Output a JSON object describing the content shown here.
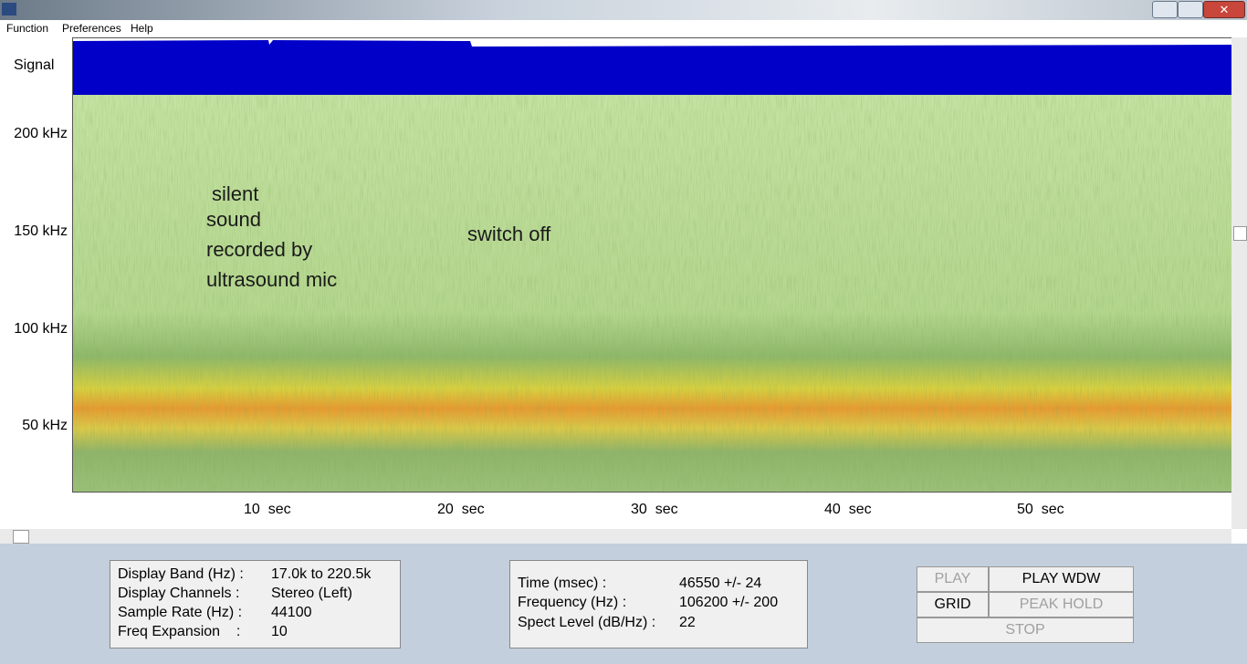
{
  "menu": [
    "Function",
    "Preferences",
    "Help"
  ],
  "signal_label": "Signal",
  "frequency_labels": [
    "200 kHz",
    "150 kHz",
    "100 kHz",
    "50 kHz"
  ],
  "time_labels": [
    "10  sec",
    "20  sec",
    "30  sec",
    "40  sec",
    "50  sec"
  ],
  "annotations": {
    "left": [
      "silent",
      "sound",
      "recorded by",
      "ultrasound mic"
    ],
    "right": "switch off"
  },
  "display_info": {
    "rows": [
      [
        "Display Band (Hz) :",
        "17.0k to 220.5k"
      ],
      [
        "Display Channels :",
        "Stereo (Left)"
      ],
      [
        "Sample Rate (Hz) :",
        "44100"
      ],
      [
        "Freq Expansion    :",
        "10"
      ]
    ]
  },
  "cursor_info": {
    "rows": [
      [
        "Time (msec) :",
        "46550 +/- 24"
      ],
      [
        "Frequency (Hz) :",
        "106200 +/- 200"
      ],
      [
        "Spect Level (dB/Hz) :",
        "22"
      ]
    ]
  },
  "buttons": [
    {
      "label": "PLAY",
      "enabled": false
    },
    {
      "label": "PLAY WDW",
      "enabled": true
    },
    {
      "label": "GRID",
      "enabled": true
    },
    {
      "label": "PEAK HOLD",
      "enabled": false
    },
    {
      "label": "STOP",
      "enabled": false
    }
  ]
}
